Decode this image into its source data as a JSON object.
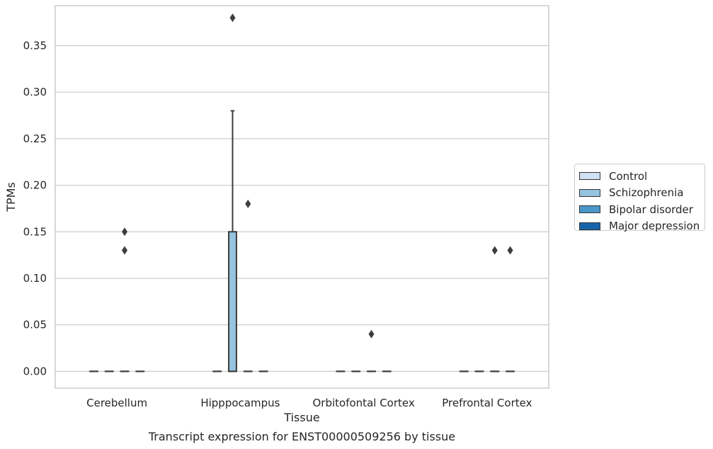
{
  "chart_data": {
    "type": "box",
    "title": "Transcript expression for ENST00000509256 by tissue",
    "xlabel": "Tissue",
    "ylabel": "TPMs",
    "ylim": [
      -0.018,
      0.393
    ],
    "yticks": [
      0.0,
      0.05,
      0.1,
      0.15,
      0.2,
      0.25,
      0.3,
      0.35
    ],
    "ytick_labels": [
      "0.00",
      "0.05",
      "0.10",
      "0.15",
      "0.20",
      "0.25",
      "0.30",
      "0.35"
    ],
    "categories": [
      "Cerebellum",
      "Hipppocampus",
      "Orbitofontal Cortex",
      "Prefrontal Cortex"
    ],
    "grid": true,
    "legend_position": "right",
    "series": [
      {
        "name": "Control",
        "color": "#d0e1f2",
        "boxes": [
          {
            "category": "Cerebellum",
            "q1": 0,
            "median": 0,
            "q3": 0,
            "whisker_low": 0,
            "whisker_high": 0,
            "outliers": []
          },
          {
            "category": "Hipppocampus",
            "q1": 0,
            "median": 0,
            "q3": 0,
            "whisker_low": 0,
            "whisker_high": 0,
            "outliers": []
          },
          {
            "category": "Orbitofontal Cortex",
            "q1": 0,
            "median": 0,
            "q3": 0,
            "whisker_low": 0,
            "whisker_high": 0,
            "outliers": []
          },
          {
            "category": "Prefrontal Cortex",
            "q1": 0,
            "median": 0,
            "q3": 0,
            "whisker_low": 0,
            "whisker_high": 0,
            "outliers": []
          }
        ]
      },
      {
        "name": "Schizophrenia",
        "color": "#94c4df",
        "boxes": [
          {
            "category": "Cerebellum",
            "q1": 0,
            "median": 0,
            "q3": 0,
            "whisker_low": 0,
            "whisker_high": 0,
            "outliers": []
          },
          {
            "category": "Hipppocampus",
            "q1": 0,
            "median": 0,
            "q3": 0.15,
            "whisker_low": 0,
            "whisker_high": 0.28,
            "outliers": [
              0.38
            ]
          },
          {
            "category": "Orbitofontal Cortex",
            "q1": 0,
            "median": 0,
            "q3": 0,
            "whisker_low": 0,
            "whisker_high": 0,
            "outliers": []
          },
          {
            "category": "Prefrontal Cortex",
            "q1": 0,
            "median": 0,
            "q3": 0,
            "whisker_low": 0,
            "whisker_high": 0,
            "outliers": []
          }
        ]
      },
      {
        "name": "Bipolar disorder",
        "color": "#4a98c9",
        "boxes": [
          {
            "category": "Cerebellum",
            "q1": 0,
            "median": 0,
            "q3": 0,
            "whisker_low": 0,
            "whisker_high": 0,
            "outliers": [
              0.15,
              0.13
            ]
          },
          {
            "category": "Hipppocampus",
            "q1": 0,
            "median": 0,
            "q3": 0,
            "whisker_low": 0,
            "whisker_high": 0,
            "outliers": [
              0.18
            ]
          },
          {
            "category": "Orbitofontal Cortex",
            "q1": 0,
            "median": 0,
            "q3": 0,
            "whisker_low": 0,
            "whisker_high": 0,
            "outliers": [
              0.04
            ]
          },
          {
            "category": "Prefrontal Cortex",
            "q1": 0,
            "median": 0,
            "q3": 0,
            "whisker_low": 0,
            "whisker_high": 0,
            "outliers": [
              0.13
            ]
          }
        ]
      },
      {
        "name": "Major depression",
        "color": "#1764ab",
        "boxes": [
          {
            "category": "Cerebellum",
            "q1": 0,
            "median": 0,
            "q3": 0,
            "whisker_low": 0,
            "whisker_high": 0,
            "outliers": []
          },
          {
            "category": "Hipppocampus",
            "q1": 0,
            "median": 0,
            "q3": 0,
            "whisker_low": 0,
            "whisker_high": 0,
            "outliers": []
          },
          {
            "category": "Orbitofontal Cortex",
            "q1": 0,
            "median": 0,
            "q3": 0,
            "whisker_low": 0,
            "whisker_high": 0,
            "outliers": []
          },
          {
            "category": "Prefrontal Cortex",
            "q1": 0,
            "median": 0,
            "q3": 0,
            "whisker_low": 0,
            "whisker_high": 0,
            "outliers": [
              0.13
            ]
          }
        ]
      }
    ]
  }
}
